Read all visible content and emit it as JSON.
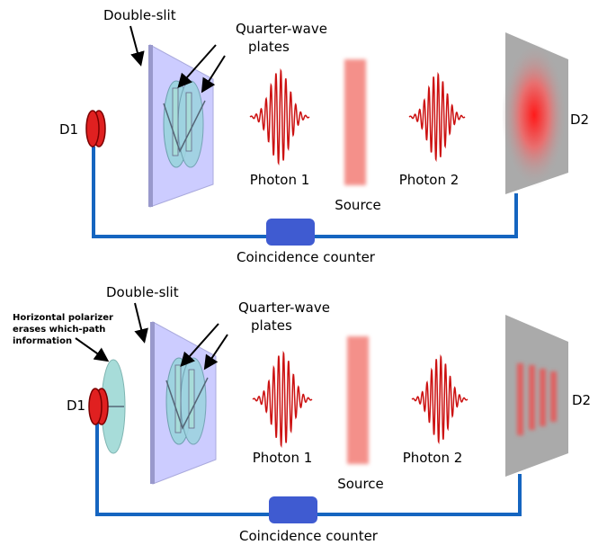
{
  "colors": {
    "wire": "#1565c0",
    "counter": "#3f5bd1",
    "detector_red": "#e02020",
    "plate_fill": "#9ed3e0",
    "slit_fill": "#ccccff",
    "wave": "#cc1111",
    "source": "#f4908a",
    "screen": "#aaaaaa",
    "polarizer": "#a7dcd9"
  },
  "top_panel": {
    "double_slit_label": "Double-slit",
    "qwp_label_line1": "Quarter-wave",
    "qwp_label_line2": "plates",
    "d1_label": "D1",
    "d2_label": "D2",
    "photon1_label": "Photon 1",
    "photon2_label": "Photon 2",
    "source_label": "Source",
    "counter_label": "Coincidence counter"
  },
  "bottom_panel": {
    "polarizer_label_line1": "Horizontal polarizer",
    "polarizer_label_line2": "erases which-path",
    "polarizer_label_line3": "information",
    "double_slit_label": "Double-slit",
    "qwp_label_line1": "Quarter-wave",
    "qwp_label_line2": "plates",
    "d1_label": "D1",
    "d2_label": "D2",
    "photon1_label": "Photon 1",
    "photon2_label": "Photon 2",
    "source_label": "Source",
    "counter_label": "Coincidence counter"
  }
}
